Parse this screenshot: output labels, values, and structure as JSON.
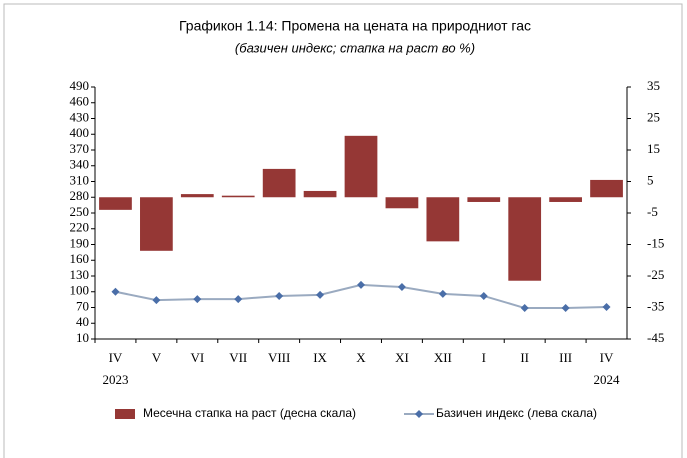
{
  "chart_data": {
    "type": "bar_line",
    "title": "Графикон 1.14: Промена на цената на природниот гас",
    "subtitle": "(базичен индекс; стапка на раст во  %)",
    "categories": [
      "IV",
      "V",
      "VI",
      "VII",
      "VIII",
      "IX",
      "X",
      "XI",
      "XII",
      "I",
      "II",
      "III",
      "IV"
    ],
    "category_years": [
      "2023",
      null,
      null,
      null,
      null,
      null,
      null,
      null,
      null,
      null,
      null,
      null,
      "2024"
    ],
    "series": [
      {
        "name": "Месечна стапка на раст (десна скала)",
        "color": "#953735",
        "axis": "y2",
        "kind": "bar",
        "values": [
          -4,
          -17,
          1,
          0.5,
          9,
          2,
          19.5,
          -3.5,
          -14,
          -1.5,
          -26.5,
          -1.5,
          5.5
        ]
      },
      {
        "name": "Базичен индекс (лева скала)",
        "color": "#9aaac0",
        "marker_color": "#4a6ea8",
        "kind": "line",
        "values": [
          100,
          84,
          86,
          86,
          92,
          94,
          113,
          109,
          96,
          92,
          69,
          69,
          71
        ]
      }
    ],
    "ylim": [
      10,
      490
    ],
    "yticks": [
      10,
      40,
      70,
      100,
      130,
      160,
      190,
      220,
      250,
      280,
      310,
      340,
      370,
      400,
      430,
      460,
      490
    ],
    "y2lim": [
      -45,
      35
    ],
    "y2ticks": [
      -45,
      -35,
      -25,
      -15,
      -5,
      5,
      15,
      25,
      35
    ]
  }
}
